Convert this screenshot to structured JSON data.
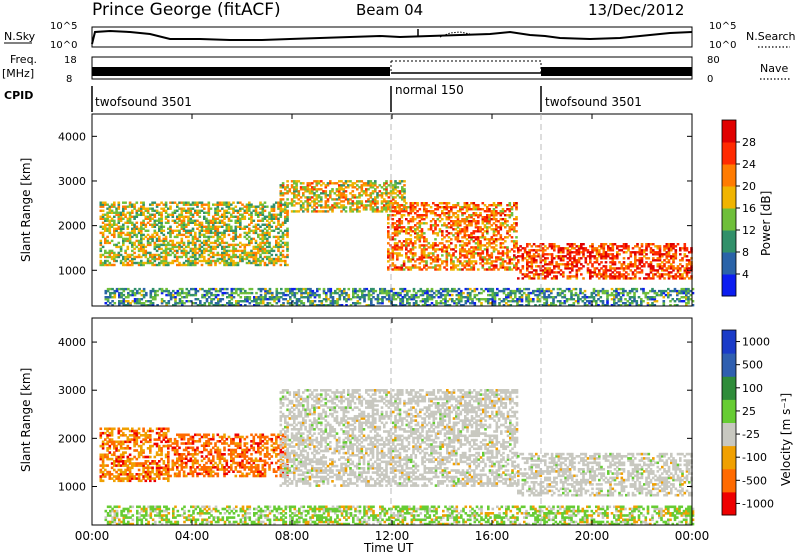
{
  "header": {
    "station": "Prince George (fitACF)",
    "beam": "Beam 04",
    "date": "13/Dec/2012"
  },
  "noise_panel": {
    "left_label": "N.Sky",
    "left_ticks": [
      "10^5",
      "10^0"
    ],
    "right_ticks": [
      "10^5",
      "10^0"
    ],
    "right_label": "N.Search"
  },
  "freq_panel": {
    "left_label_1": "Freq.",
    "left_label_2": "[MHz]",
    "left_ticks": [
      "18",
      "8"
    ],
    "right_ticks": [
      "80",
      "0"
    ],
    "right_label": "Nave"
  },
  "cpid": {
    "label": "CPID",
    "segments": [
      {
        "name": "twofsound 3501",
        "start_hour": 0,
        "end_hour": 12
      },
      {
        "name": "normal 150",
        "start_hour": 12,
        "end_hour": 18
      },
      {
        "name": "twofsound 3501",
        "start_hour": 18,
        "end_hour": 24
      }
    ]
  },
  "chart_data": [
    {
      "type": "heatmap",
      "quantity": "Power",
      "ylabel": "Slant Range [km]",
      "ylim": [
        200,
        4500
      ],
      "yticks": [
        1000,
        2000,
        3000,
        4000
      ],
      "xlim": [
        0,
        24
      ],
      "colorbar": {
        "label": "Power [dB]",
        "range": [
          0,
          32
        ],
        "ticks": [
          "4",
          "8",
          "12",
          "16",
          "20",
          "24",
          "28"
        ],
        "colors": [
          "#0c1df0",
          "#2a63a8",
          "#31906a",
          "#6fbf3a",
          "#f0b400",
          "#ff7b00",
          "#ff2a00",
          "#e00000"
        ]
      },
      "echo_bands": [
        {
          "start_hour": 0.3,
          "end_hour": 7.8,
          "range_km": [
            1100,
            2500
          ],
          "power_db": 16
        },
        {
          "start_hour": 7.5,
          "end_hour": 12.5,
          "range_km": [
            2300,
            3000
          ],
          "power_db": 18
        },
        {
          "start_hour": 11.8,
          "end_hour": 17.0,
          "range_km": [
            1000,
            2500
          ],
          "power_db": 22
        },
        {
          "start_hour": 17.0,
          "end_hour": 24.0,
          "range_km": [
            800,
            1600
          ],
          "power_db": 26
        },
        {
          "start_hour": 0.5,
          "end_hour": 24.0,
          "range_km": [
            200,
            600
          ],
          "power_db": 10
        }
      ]
    },
    {
      "type": "heatmap",
      "quantity": "Velocity",
      "ylabel": "Slant Range [km]",
      "ylim": [
        200,
        4500
      ],
      "yticks": [
        1000,
        2000,
        3000,
        4000
      ],
      "xlim": [
        0,
        24
      ],
      "xlabel": "Time UT",
      "xticks": [
        "00:00",
        "04:00",
        "08:00",
        "12:00",
        "16:00",
        "20:00",
        "00:00"
      ],
      "colorbar": {
        "label": "Velocity [m s⁻¹]",
        "ticks": [
          "1000",
          "500",
          "100",
          "25",
          "-25",
          "-100",
          "-500",
          "-1000"
        ],
        "colors": [
          "#1a3bc8",
          "#2f5fb0",
          "#2f8c3a",
          "#66cc33",
          "#c8c8c0",
          "#f0a000",
          "#ff6a00",
          "#ee0000"
        ]
      },
      "echo_bands": [
        {
          "start_hour": 0.3,
          "end_hour": 3.0,
          "range_km": [
            1100,
            2200
          ],
          "velocity": -100
        },
        {
          "start_hour": 3.0,
          "end_hour": 7.8,
          "range_km": [
            1200,
            2100
          ],
          "velocity": -500
        },
        {
          "start_hour": 7.5,
          "end_hour": 17.0,
          "range_km": [
            1000,
            3000
          ],
          "velocity": 0
        },
        {
          "start_hour": 17.0,
          "end_hour": 24.0,
          "range_km": [
            800,
            1700
          ],
          "velocity": 0
        },
        {
          "start_hour": 0.5,
          "end_hour": 24.0,
          "range_km": [
            200,
            600
          ],
          "velocity": 100
        }
      ]
    }
  ]
}
